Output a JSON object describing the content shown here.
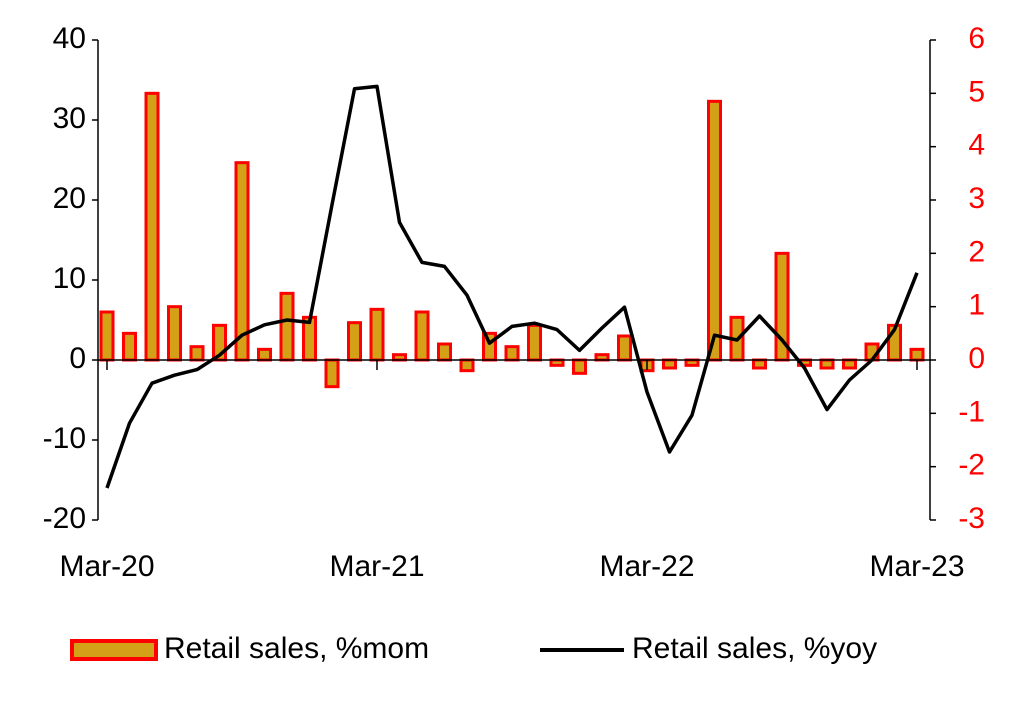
{
  "chart_data": {
    "type": "bar_line",
    "categories": [
      "Mar-20",
      null,
      null,
      null,
      null,
      null,
      null,
      null,
      null,
      null,
      null,
      null,
      "Mar-21",
      null,
      null,
      null,
      null,
      null,
      null,
      null,
      null,
      null,
      null,
      null,
      "Mar-22",
      null,
      null,
      null,
      null,
      null,
      null,
      null,
      null,
      null,
      null,
      null,
      "Mar-23"
    ],
    "series": [
      {
        "name": "Retail sales, %mom",
        "type": "bar",
        "axis": "y2",
        "color": "#ff0000",
        "fill": "#d4a017",
        "values": [
          0.9,
          0.5,
          5.0,
          1.0,
          0.25,
          0.65,
          3.7,
          0.2,
          1.25,
          0.8,
          -0.5,
          0.7,
          0.95,
          0.1,
          0.9,
          0.3,
          -0.2,
          0.5,
          0.25,
          0.65,
          -0.1,
          -0.25,
          0.1,
          0.45,
          -0.2,
          -0.15,
          -0.1,
          4.85,
          0.8,
          -0.15,
          2.0,
          -0.1,
          -0.15,
          -0.15,
          0.3,
          0.65,
          0.2
        ]
      },
      {
        "name": "Retail sales, %yoy",
        "type": "line",
        "axis": "y",
        "color": "#000000",
        "values": [
          -16,
          -7.9,
          -2.9,
          -1.9,
          -1.2,
          0.6,
          3.1,
          4.4,
          5,
          4.7,
          19.4,
          33.9,
          34.2,
          17.2,
          12.2,
          11.7,
          8.1,
          2.1,
          4.2,
          4.6,
          3.8,
          1.2,
          4,
          6.6,
          -4,
          -11.5,
          -6.9,
          3.1,
          2.5,
          5.5,
          2.5,
          -1,
          -6.2,
          -2.5,
          0,
          3.8,
          10.9
        ]
      }
    ],
    "ylim": [
      -20,
      40
    ],
    "yticks": [
      -20,
      -10,
      0,
      10,
      20,
      30,
      40
    ],
    "y2lim": [
      -3,
      6
    ],
    "y2ticks": [
      -3,
      -2,
      -1,
      0,
      1,
      2,
      3,
      4,
      5,
      6
    ],
    "y2color": "#ff0000",
    "legend": "bottom"
  }
}
